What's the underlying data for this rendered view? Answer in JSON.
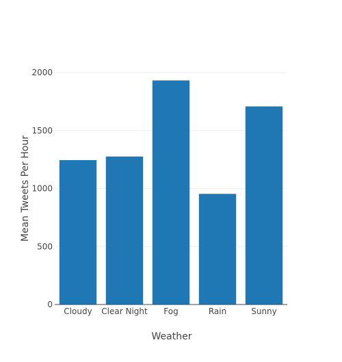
{
  "chart_data": {
    "type": "bar",
    "title": "",
    "xlabel": "Weather",
    "ylabel": "Mean Tweets Per Hour",
    "categories": [
      "Cloudy",
      "Clear Night",
      "Fog",
      "Rain",
      "Sunny"
    ],
    "values": [
      1245,
      1276,
      1932,
      954,
      1708
    ],
    "ylim": [
      0,
      2000
    ],
    "yticks": [
      "0",
      "500",
      "1000",
      "1500",
      "2000"
    ],
    "ytick_values": [
      0,
      500,
      1000,
      1500,
      2000
    ],
    "grid": true,
    "legend": "none",
    "colors": {
      "bar": "#1f77b4",
      "grid": "#eeeeee",
      "axis": "#444444",
      "text": "#444444"
    }
  }
}
